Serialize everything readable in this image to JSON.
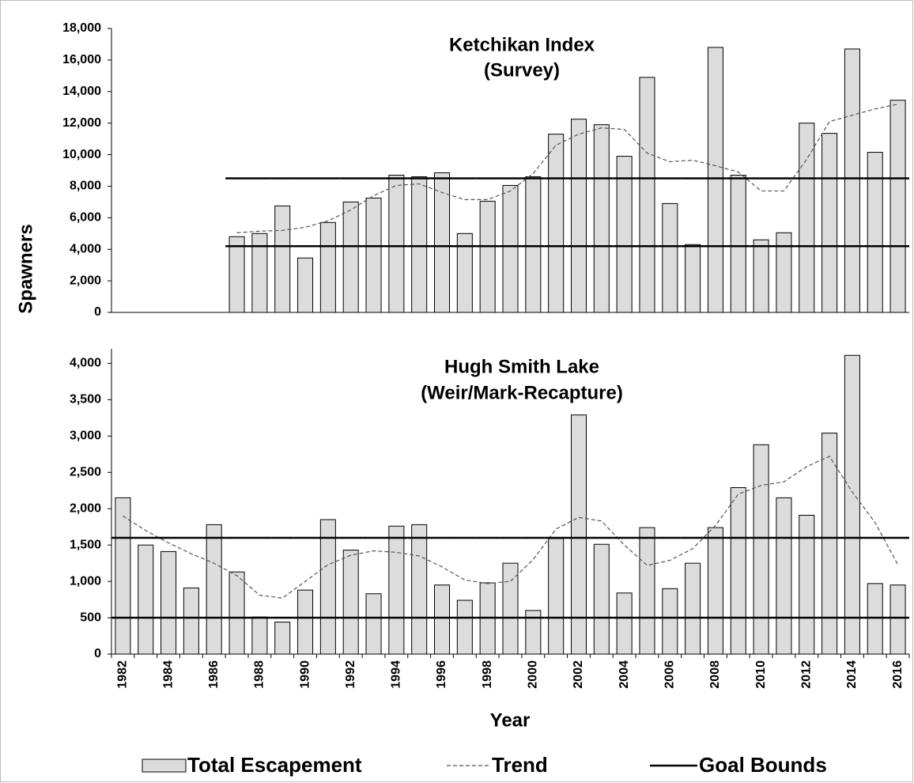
{
  "chart_data": [
    {
      "type": "bar",
      "title": [
        "Ketchikan Index",
        "(Survey)"
      ],
      "ylabel": "Spawners",
      "ylim": [
        0,
        18000
      ],
      "yticks": [
        0,
        {
          "value": 2000,
          "label": "2,000"
        },
        {
          "value": 4000,
          "label": "4,000"
        },
        {
          "value": 6000,
          "label": "6,000"
        },
        {
          "value": 8000,
          "label": "8,000"
        },
        {
          "value": 10000,
          "label": "10,000"
        },
        {
          "value": 12000,
          "label": "12,000"
        },
        {
          "value": 14000,
          "label": "14,000"
        },
        {
          "value": 16000,
          "label": "16,000"
        },
        {
          "value": 18000,
          "label": "18,000"
        }
      ],
      "series": [
        {
          "color": "#dcdcdc",
          "values": [
            null,
            null,
            null,
            null,
            null,
            4800,
            5000,
            6750,
            3450,
            5700,
            7000,
            7250,
            8700,
            8600,
            8850,
            5000,
            7050,
            8050,
            8600,
            11300,
            12250,
            11900,
            9900,
            14900,
            6900,
            4300,
            16800,
            8700,
            4600,
            5050,
            12000,
            11350,
            16700,
            10150,
            13450
          ]
        },
        {
          "color": "#555555",
          "values": [
            null,
            null,
            null,
            null,
            null,
            5050,
            5150,
            5200,
            5400,
            5800,
            6500,
            7400,
            8050,
            8150,
            7600,
            7150,
            7150,
            7700,
            8800,
            10600,
            11300,
            11700,
            11600,
            10100,
            9550,
            9650,
            9300,
            8900,
            7700,
            7700,
            9700,
            12100,
            12500,
            12900,
            13200
          ]
        },
        {
          "color": "#000000",
          "lower": [
            null,
            null,
            null,
            null,
            null,
            4200,
            4200,
            4200,
            4200,
            4200,
            4200,
            4200,
            4200,
            4200,
            4200,
            4200,
            4200,
            4200,
            4200,
            4200,
            4200,
            4200,
            4200,
            4200,
            4200,
            4200,
            4200,
            4200,
            4200,
            4200,
            4200,
            4200,
            4200,
            4200,
            4200
          ],
          "upper": [
            null,
            null,
            null,
            null,
            null,
            8500,
            8500,
            8500,
            8500,
            8500,
            8500,
            8500,
            8500,
            8500,
            8500,
            8500,
            8500,
            8500,
            8500,
            8500,
            8500,
            8500,
            8500,
            8500,
            8500,
            8500,
            8500,
            8500,
            8500,
            8500,
            8500,
            8500,
            8500,
            8500,
            8500
          ]
        }
      ]
    },
    {
      "type": "bar",
      "title": [
        "Hugh Smith Lake",
        "(Weir/Mark-Recapture)"
      ],
      "xlabel": "Year",
      "categories": [
        "1982",
        null,
        "1984",
        null,
        "1986",
        null,
        "1988",
        null,
        "1990",
        null,
        "1992",
        null,
        "1994",
        null,
        "1996",
        null,
        "1998",
        null,
        "2000",
        null,
        "2002",
        null,
        "2004",
        null,
        "2006",
        null,
        "2008",
        null,
        "2010",
        null,
        "2012",
        null,
        "2014",
        null,
        "2016"
      ],
      "ylim": [
        0,
        4200
      ],
      "yticks": [
        0,
        500,
        {
          "value": 1000,
          "label": "1,000"
        },
        {
          "value": 1500,
          "label": "1,500"
        },
        {
          "value": 2000,
          "label": "2,000"
        },
        {
          "value": 2500,
          "label": "2,500"
        },
        {
          "value": 3000,
          "label": "3,000"
        },
        {
          "value": 3500,
          "label": "3,500"
        },
        {
          "value": 4000,
          "label": "4,000"
        }
      ],
      "series": [
        {
          "name": "Total Escapement",
          "color": "#dcdcdc",
          "values": [
            2150,
            1500,
            1410,
            910,
            1780,
            1130,
            510,
            440,
            880,
            1850,
            1430,
            830,
            1760,
            1780,
            950,
            740,
            980,
            1250,
            600,
            1590,
            3290,
            1510,
            840,
            1740,
            900,
            1250,
            1740,
            2290,
            2880,
            2150,
            1910,
            3040,
            4110,
            970,
            950
          ]
        },
        {
          "name": "Trend",
          "color": "#555555",
          "values": [
            1900,
            1700,
            1530,
            1380,
            1250,
            1080,
            810,
            770,
            1000,
            1230,
            1360,
            1420,
            1400,
            1350,
            1200,
            1020,
            970,
            1000,
            1300,
            1720,
            1880,
            1830,
            1500,
            1220,
            1290,
            1450,
            1770,
            2200,
            2320,
            2370,
            2580,
            2720,
            2230,
            1810,
            1230
          ]
        },
        {
          "name": "Goal Bounds",
          "color": "#000000",
          "lower": [
            500,
            500,
            500,
            500,
            500,
            500,
            500,
            500,
            500,
            500,
            500,
            500,
            500,
            500,
            500,
            500,
            500,
            500,
            500,
            500,
            500,
            500,
            500,
            500,
            500,
            500,
            500,
            500,
            500,
            500,
            500,
            500,
            500,
            500,
            500
          ],
          "upper": [
            1600,
            1600,
            1600,
            1600,
            1600,
            1600,
            1600,
            1600,
            1600,
            1600,
            1600,
            1600,
            1600,
            1600,
            1600,
            1600,
            1600,
            1600,
            1600,
            1600,
            1600,
            1600,
            1600,
            1600,
            1600,
            1600,
            1600,
            1600,
            1600,
            1600,
            1600,
            1600,
            1600,
            1600,
            1600
          ]
        }
      ]
    }
  ]
}
